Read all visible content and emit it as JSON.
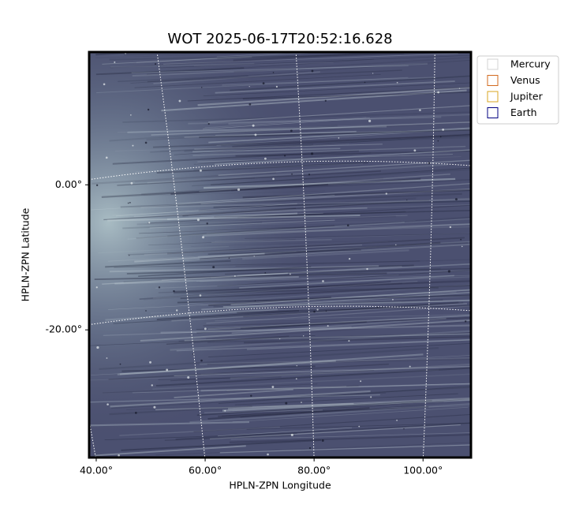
{
  "chart_data": {
    "type": "image",
    "title": "WOT 2025-06-17T20:52:16.628",
    "xlabel": "HPLN-ZPN Longitude",
    "ylabel": "HPLN-ZPN Latitude",
    "xlim": [
      38.7,
      108.8
    ],
    "ylim": [
      -37.6,
      18.3
    ],
    "xticks": [
      {
        "value": 40,
        "label": "40.00°"
      },
      {
        "value": 60,
        "label": "60.00°"
      },
      {
        "value": 80,
        "label": "80.00°"
      },
      {
        "value": 100,
        "label": "100.00°"
      }
    ],
    "yticks": [
      {
        "value": 0,
        "label": "0.00°"
      },
      {
        "value": -20,
        "label": "-20.00°"
      }
    ],
    "grid": true,
    "legend_position": "upper right",
    "legend": [
      {
        "name": "Mercury",
        "color": "#d3d3d3"
      },
      {
        "name": "Venus",
        "color": "#d2691e"
      },
      {
        "name": "Jupiter",
        "color": "#daa520"
      },
      {
        "name": "Earth",
        "color": "#000080"
      }
    ]
  }
}
